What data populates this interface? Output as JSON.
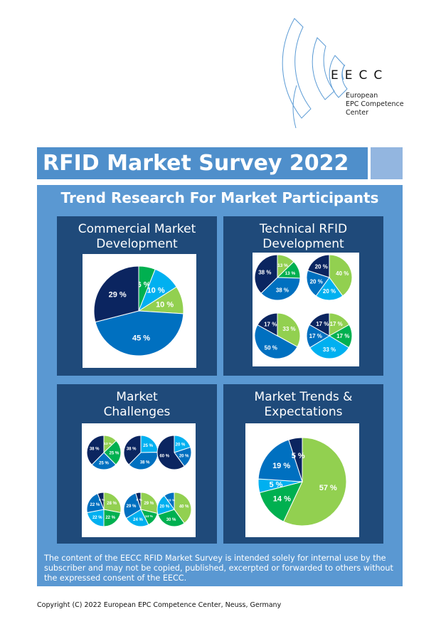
{
  "logo": {
    "text": "EECC",
    "line1": "European",
    "line2": "EPC Competence",
    "line3": "Center"
  },
  "title": "RFID Market Survey 2022",
  "subtitle": "Trend Research For Market Participants",
  "colors": {
    "navy": "#0b2560",
    "blue": "#0070c0",
    "lightblue": "#00b0f0",
    "green": "#00b050",
    "lightgreen": "#92d050",
    "panel": "#5a98d2",
    "card": "#1f4a7a"
  },
  "cards": [
    {
      "title": "Commercial Market Development",
      "pies": [
        [
          {
            "v": 6,
            "c": "green",
            "l": "6 %"
          },
          {
            "v": 10,
            "c": "lightblue",
            "l": "10 %"
          },
          {
            "v": 10,
            "c": "lightgreen",
            "l": "10 %"
          },
          {
            "v": 45,
            "c": "blue",
            "l": "45 %"
          },
          {
            "v": 29,
            "c": "navy",
            "l": "29 %"
          }
        ]
      ]
    },
    {
      "title": "Technical RFID Development",
      "pies": [
        [
          {
            "v": 13,
            "c": "lightgreen",
            "l": "13 %"
          },
          {
            "v": 13,
            "c": "green",
            "l": "13 %"
          },
          {
            "v": 38,
            "c": "blue",
            "l": "38 %"
          },
          {
            "v": 38,
            "c": "navy",
            "l": "38 %"
          }
        ],
        [
          {
            "v": 40,
            "c": "lightgreen",
            "l": "40 %"
          },
          {
            "v": 20,
            "c": "lightblue",
            "l": "20 %"
          },
          {
            "v": 20,
            "c": "blue",
            "l": "20 %"
          },
          {
            "v": 20,
            "c": "navy",
            "l": "20 %"
          }
        ],
        [
          {
            "v": 33,
            "c": "lightgreen",
            "l": "33 %"
          },
          {
            "v": 50,
            "c": "blue",
            "l": "50 %"
          },
          {
            "v": 17,
            "c": "navy",
            "l": "17 %"
          }
        ],
        [
          {
            "v": 17,
            "c": "lightgreen",
            "l": "17 %"
          },
          {
            "v": 17,
            "c": "green",
            "l": "17 %"
          },
          {
            "v": 33,
            "c": "lightblue",
            "l": "33 %"
          },
          {
            "v": 17,
            "c": "blue",
            "l": "17 %"
          },
          {
            "v": 17,
            "c": "navy",
            "l": "17 %"
          }
        ]
      ]
    },
    {
      "title": "Market Challenges",
      "pies": [
        [
          {
            "v": 13,
            "c": "lightgreen",
            "l": "13 %"
          },
          {
            "v": 25,
            "c": "green",
            "l": "25 %"
          },
          {
            "v": 25,
            "c": "blue",
            "l": "25 %"
          },
          {
            "v": 38,
            "c": "navy",
            "l": "38 %"
          }
        ],
        [
          {
            "v": 25,
            "c": "lightblue",
            "l": "25 %"
          },
          {
            "v": 38,
            "c": "blue",
            "l": "38 %"
          },
          {
            "v": 38,
            "c": "navy",
            "l": "38 %"
          }
        ],
        [
          {
            "v": 20,
            "c": "lightblue",
            "l": "20 %"
          },
          {
            "v": 20,
            "c": "blue",
            "l": "20 %"
          },
          {
            "v": 60,
            "c": "navy",
            "l": "60 %"
          }
        ],
        [
          {
            "v": 28,
            "c": "lightgreen",
            "l": "28 %"
          },
          {
            "v": 22,
            "c": "green",
            "l": "22 %"
          },
          {
            "v": 22,
            "c": "lightblue",
            "l": "22 %"
          },
          {
            "v": 22,
            "c": "blue",
            "l": "22 %"
          },
          {
            "v": 6,
            "c": "navy",
            "l": "6 %"
          }
        ],
        [
          {
            "v": 29,
            "c": "lightgreen",
            "l": "29 %"
          },
          {
            "v": 14,
            "c": "green",
            "l": "14 %"
          },
          {
            "v": 24,
            "c": "lightblue",
            "l": "24 %"
          },
          {
            "v": 29,
            "c": "blue",
            "l": "29 %"
          },
          {
            "v": 5,
            "c": "navy",
            "l": "5 %"
          }
        ],
        [
          {
            "v": 40,
            "c": "lightgreen",
            "l": "40 %"
          },
          {
            "v": 30,
            "c": "green",
            "l": "30 %"
          },
          {
            "v": 20,
            "c": "lightblue",
            "l": "20 %"
          },
          {
            "v": 10,
            "c": "blue",
            "l": "10 %"
          }
        ]
      ]
    },
    {
      "title": "Market Trends & Expectations",
      "pies": [
        [
          {
            "v": 57,
            "c": "lightgreen",
            "l": "57 %"
          },
          {
            "v": 14,
            "c": "green",
            "l": "14 %"
          },
          {
            "v": 5,
            "c": "lightblue",
            "l": "5 %"
          },
          {
            "v": 19,
            "c": "blue",
            "l": "19 %"
          },
          {
            "v": 5,
            "c": "navy",
            "l": "5 %"
          }
        ]
      ]
    }
  ],
  "disclaimer": "The content of the EECC RFID Market Survey is intended solely for internal use by the subscriber and may not be copied, published, excerpted or forwarded to others without the expressed consent of the EECC.",
  "copyright": "Copyright (C) 2022 European EPC Competence Center, Neuss, Germany"
}
